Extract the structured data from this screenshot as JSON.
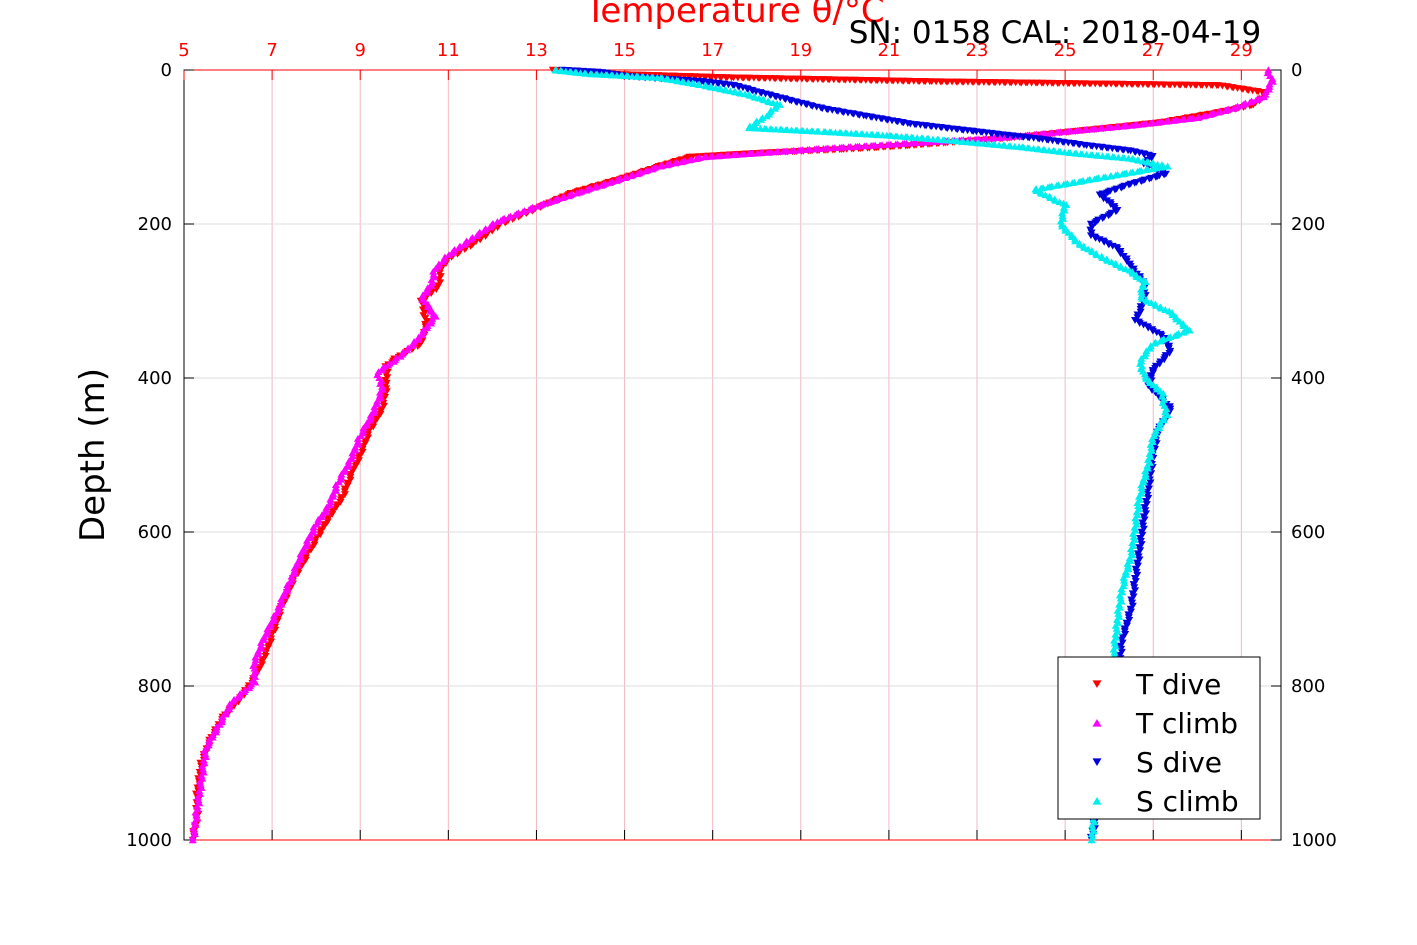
{
  "chart_data": {
    "type": "scatter",
    "title": "Temperature θ/°C",
    "subtitle": "SN: 0158  CAL: 2018-04-19",
    "ylabel": "Depth (m)",
    "x_top_ticks": [
      "5",
      "7",
      "9",
      "11",
      "13",
      "15",
      "17",
      "19",
      "21",
      "23",
      "25",
      "27",
      "29"
    ],
    "y_ticks": [
      "0",
      "200",
      "400",
      "600",
      "800",
      "1000"
    ],
    "x_range": [
      5,
      29.9
    ],
    "y_range": [
      0,
      1000
    ],
    "y_reversed": true,
    "grid": true,
    "legend_position": "bottom-right",
    "series": [
      {
        "name": "T dive",
        "marker": "triangle-down",
        "color": "#ff0000",
        "points": [
          [
            13.4,
            0
          ],
          [
            14.5,
            5
          ],
          [
            17.5,
            10
          ],
          [
            22,
            15
          ],
          [
            28.5,
            20
          ],
          [
            29.6,
            30
          ],
          [
            29.3,
            45
          ],
          [
            28.5,
            55
          ],
          [
            27.2,
            68
          ],
          [
            25.5,
            78
          ],
          [
            23.8,
            88
          ],
          [
            21.5,
            98
          ],
          [
            20,
            103
          ],
          [
            18,
            108
          ],
          [
            16.5,
            113
          ],
          [
            15.8,
            125
          ],
          [
            15,
            140
          ],
          [
            13.8,
            160
          ],
          [
            13,
            180
          ],
          [
            12.2,
            200
          ],
          [
            11.6,
            225
          ],
          [
            11,
            245
          ],
          [
            10.8,
            260
          ],
          [
            10.8,
            280
          ],
          [
            10.4,
            300
          ],
          [
            10.5,
            330
          ],
          [
            10.4,
            355
          ],
          [
            9.8,
            375
          ],
          [
            9.6,
            385
          ],
          [
            9.6,
            410
          ],
          [
            9.5,
            440
          ],
          [
            9.2,
            470
          ],
          [
            9,
            500
          ],
          [
            8.8,
            525
          ],
          [
            8.6,
            555
          ],
          [
            8.3,
            580
          ],
          [
            8,
            610
          ],
          [
            7.8,
            630
          ],
          [
            7.5,
            660
          ],
          [
            7.2,
            700
          ],
          [
            7,
            735
          ],
          [
            6.8,
            765
          ],
          [
            6.6,
            790
          ],
          [
            6.3,
            815
          ],
          [
            5.9,
            840
          ],
          [
            5.6,
            870
          ],
          [
            5.4,
            900
          ],
          [
            5.3,
            940
          ],
          [
            5.3,
            970
          ],
          [
            5.2,
            1000
          ]
        ]
      },
      {
        "name": "T climb",
        "marker": "triangle-up",
        "color": "#ff00ff",
        "points": [
          [
            29.6,
            0
          ],
          [
            29.7,
            15
          ],
          [
            29.5,
            35
          ],
          [
            28.8,
            50
          ],
          [
            28,
            62
          ],
          [
            26.5,
            72
          ],
          [
            25,
            80
          ],
          [
            23.5,
            88
          ],
          [
            21.5,
            95
          ],
          [
            19.5,
            102
          ],
          [
            18,
            108
          ],
          [
            16.8,
            113
          ],
          [
            15.8,
            125
          ],
          [
            15,
            140
          ],
          [
            13.9,
            160
          ],
          [
            13,
            177
          ],
          [
            12.1,
            197
          ],
          [
            11.5,
            220
          ],
          [
            11,
            240
          ],
          [
            10.7,
            258
          ],
          [
            10.6,
            280
          ],
          [
            10.4,
            295
          ],
          [
            10.7,
            320
          ],
          [
            10.3,
            350
          ],
          [
            9.9,
            372
          ],
          [
            9.4,
            392
          ],
          [
            9.5,
            415
          ],
          [
            9.3,
            445
          ],
          [
            9,
            475
          ],
          [
            8.8,
            505
          ],
          [
            8.5,
            535
          ],
          [
            8.3,
            565
          ],
          [
            8,
            590
          ],
          [
            7.7,
            625
          ],
          [
            7.4,
            665
          ],
          [
            7.1,
            705
          ],
          [
            6.8,
            740
          ],
          [
            6.6,
            770
          ],
          [
            6.6,
            795
          ],
          [
            6.1,
            820
          ],
          [
            5.8,
            850
          ],
          [
            5.5,
            880
          ],
          [
            5.4,
            920
          ],
          [
            5.3,
            960
          ],
          [
            5.2,
            1000
          ]
        ]
      },
      {
        "name": "S dive",
        "marker": "triangle-down",
        "color": "#0000dd",
        "points": [
          [
            13.6,
            0
          ],
          [
            14.5,
            3
          ],
          [
            15,
            8
          ],
          [
            16.8,
            15
          ],
          [
            17.5,
            20
          ],
          [
            18,
            28
          ],
          [
            18.8,
            40
          ],
          [
            19.5,
            50
          ],
          [
            20.5,
            60
          ],
          [
            21.5,
            70
          ],
          [
            23,
            80
          ],
          [
            24.5,
            90
          ],
          [
            25.5,
            98
          ],
          [
            26.5,
            105
          ],
          [
            27,
            112
          ],
          [
            26.8,
            122
          ],
          [
            27.3,
            135
          ],
          [
            26.5,
            148
          ],
          [
            25.8,
            162
          ],
          [
            26.2,
            182
          ],
          [
            25.6,
            200
          ],
          [
            25.6,
            215
          ],
          [
            26.2,
            232
          ],
          [
            26.5,
            255
          ],
          [
            26.8,
            278
          ],
          [
            26.8,
            300
          ],
          [
            26.6,
            325
          ],
          [
            27.2,
            345
          ],
          [
            27.4,
            365
          ],
          [
            27,
            390
          ],
          [
            26.9,
            410
          ],
          [
            27.4,
            440
          ],
          [
            27.1,
            470
          ],
          [
            27,
            500
          ],
          [
            26.9,
            540
          ],
          [
            26.8,
            580
          ],
          [
            26.7,
            620
          ],
          [
            26.6,
            660
          ],
          [
            26.5,
            700
          ],
          [
            26.3,
            740
          ],
          [
            26.2,
            780
          ],
          [
            26.1,
            820
          ],
          [
            26,
            860
          ],
          [
            25.9,
            900
          ],
          [
            25.8,
            940
          ],
          [
            25.7,
            970
          ],
          [
            25.6,
            1000
          ]
        ]
      },
      {
        "name": "S climb",
        "marker": "triangle-up",
        "color": "#00eeee",
        "points": [
          [
            13.4,
            0
          ],
          [
            14.2,
            5
          ],
          [
            15.8,
            10
          ],
          [
            16.8,
            20
          ],
          [
            17.8,
            32
          ],
          [
            18.5,
            45
          ],
          [
            18.2,
            60
          ],
          [
            17.8,
            75
          ],
          [
            19.5,
            80
          ],
          [
            21,
            85
          ],
          [
            22.5,
            92
          ],
          [
            24,
            100
          ],
          [
            25.2,
            108
          ],
          [
            26.5,
            115
          ],
          [
            27.3,
            125
          ],
          [
            26,
            138
          ],
          [
            24.3,
            155
          ],
          [
            25,
            175
          ],
          [
            24.9,
            200
          ],
          [
            25.3,
            225
          ],
          [
            25.8,
            242
          ],
          [
            26.5,
            262
          ],
          [
            26.8,
            275
          ],
          [
            26.7,
            295
          ],
          [
            27.4,
            315
          ],
          [
            27.8,
            338
          ],
          [
            27,
            355
          ],
          [
            26.7,
            378
          ],
          [
            26.8,
            398
          ],
          [
            27.2,
            420
          ],
          [
            27.3,
            448
          ],
          [
            27,
            475
          ],
          [
            26.9,
            510
          ],
          [
            26.7,
            550
          ],
          [
            26.6,
            590
          ],
          [
            26.5,
            630
          ],
          [
            26.3,
            670
          ],
          [
            26.2,
            710
          ],
          [
            26.1,
            760
          ],
          [
            26,
            810
          ],
          [
            25.9,
            860
          ],
          [
            25.8,
            910
          ],
          [
            25.7,
            950
          ],
          [
            25.6,
            1000
          ]
        ]
      }
    ]
  }
}
